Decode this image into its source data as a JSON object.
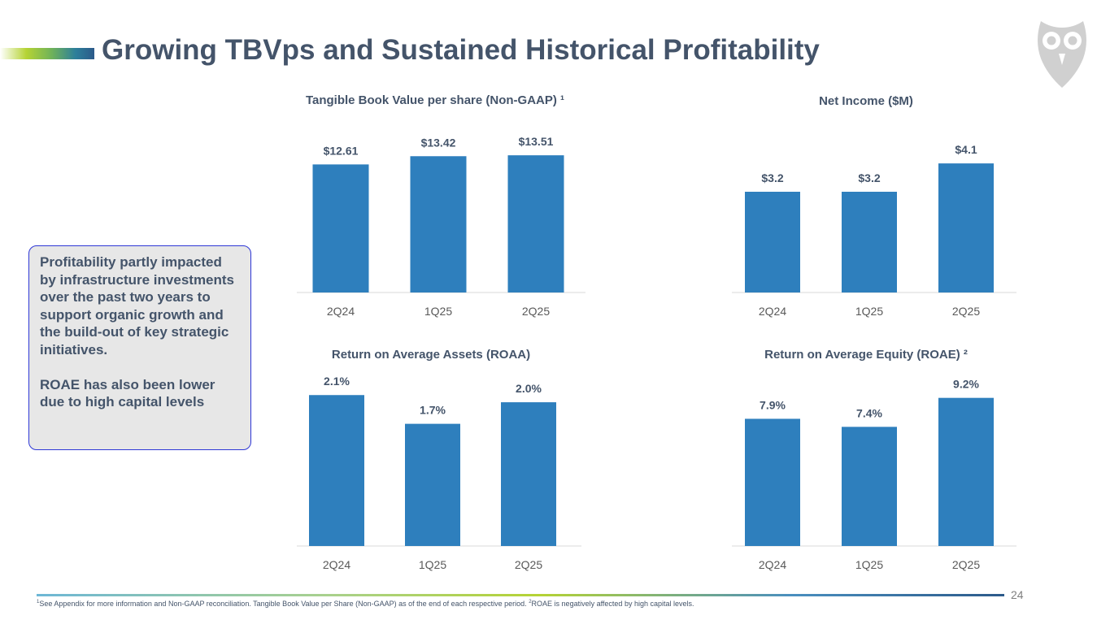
{
  "header": {
    "title": "Growing TBVps and Sustained Historical Profitability",
    "logo_icon": "owl-icon"
  },
  "callout": {
    "paragraph_1": "Profitability partly impacted by infrastructure investments over the past two years to support organic growth and the build-out of key strategic initiatives.",
    "paragraph_2": "ROAE has also been lower due to high capital levels"
  },
  "chart_data": [
    {
      "id": "tbvps",
      "type": "bar",
      "title": "Tangible Book Value per share (Non-GAAP) ¹",
      "categories": [
        "2Q24",
        "1Q25",
        "2Q25"
      ],
      "values": [
        12.61,
        13.42,
        13.51
      ],
      "labels": [
        "$12.61",
        "$13.42",
        "$13.51"
      ],
      "xlabel": "",
      "ylabel": "",
      "ylim": [
        0,
        16
      ]
    },
    {
      "id": "net-income",
      "type": "bar",
      "title": "Net Income ($M)",
      "categories": [
        "2Q24",
        "1Q25",
        "2Q25"
      ],
      "values": [
        3.2,
        3.2,
        4.1
      ],
      "labels": [
        "$3.2",
        "$3.2",
        "$4.1"
      ],
      "xlabel": "",
      "ylabel": "",
      "ylim": [
        0,
        4.8
      ]
    },
    {
      "id": "roaa",
      "type": "bar",
      "title": "Return on Average Assets (ROAA)",
      "categories": [
        "2Q24",
        "1Q25",
        "2Q25"
      ],
      "values": [
        2.1,
        1.7,
        2.0
      ],
      "labels": [
        "2.1%",
        "1.7%",
        "2.0%"
      ],
      "xlabel": "",
      "ylabel": "",
      "ylim": [
        0,
        2.6
      ]
    },
    {
      "id": "roae",
      "type": "bar",
      "title": "Return on Average Equity (ROAE) ²",
      "categories": [
        "2Q24",
        "1Q25",
        "2Q25"
      ],
      "values": [
        7.9,
        7.4,
        9.2
      ],
      "labels": [
        "7.9%",
        "7.4%",
        "9.2%"
      ],
      "xlabel": "",
      "ylabel": "",
      "ylim": [
        0,
        10.9
      ]
    }
  ],
  "footer": {
    "page_number": "24",
    "footnote_mark_1": "1",
    "footnote_text_1": "See Appendix for more information and Non-GAAP reconciliation. Tangible Book Value per Share (Non-GAAP) as of the end of each respective period.",
    "footnote_mark_2": "2",
    "footnote_text_2": "ROAE is negatively affected by high capital levels."
  },
  "colors": {
    "bar": "#2e7fbd",
    "title": "#44546a",
    "callout_border": "#2e37d6",
    "callout_bg": "#e7e7e7"
  }
}
